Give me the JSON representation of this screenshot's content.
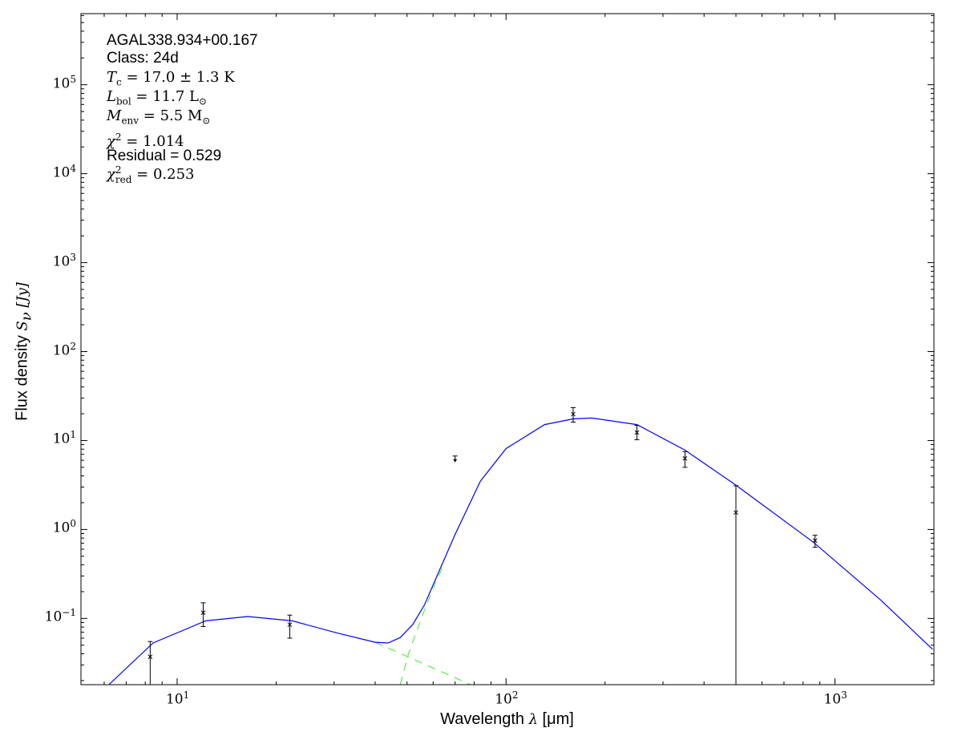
{
  "chart_data": {
    "type": "scatter",
    "xscale": "log",
    "yscale": "log",
    "xlim": [
      5.1,
      2000
    ],
    "ylim": [
      0.018,
      630000
    ],
    "xlabel": {
      "text": "Wavelength ",
      "sym": "λ",
      "unit": " [μm]"
    },
    "ylabel": {
      "text": "Flux density ",
      "sym": "S",
      "sub": "ν",
      "unit": " [Jy]"
    },
    "xticks": [
      {
        "base": "10",
        "exp": "1",
        "value": 10
      },
      {
        "base": "10",
        "exp": "2",
        "value": 100
      },
      {
        "base": "10",
        "exp": "3",
        "value": 1000
      }
    ],
    "yticks": [
      {
        "base": "10",
        "exp": "−1",
        "value": 0.1
      },
      {
        "base": "10",
        "exp": "0",
        "value": 1
      },
      {
        "base": "10",
        "exp": "1",
        "value": 10
      },
      {
        "base": "10",
        "exp": "2",
        "value": 100
      },
      {
        "base": "10",
        "exp": "3",
        "value": 1000
      },
      {
        "base": "10",
        "exp": "4",
        "value": 10000
      },
      {
        "base": "10",
        "exp": "5",
        "value": 100000
      }
    ],
    "grid": false,
    "annotations": {
      "name": "AGAL338.934+00.167",
      "class": "Class: 24d",
      "tc": {
        "var": "T",
        "sub": "c",
        "rest": " = 17.0 ± 1.3 K"
      },
      "lbol": {
        "var": "L",
        "sub": "bol",
        "rest": " = 11.7 L",
        "rest_sub": "⊙"
      },
      "menv": {
        "var": "M",
        "sub": "env",
        "rest": " = 5.5 M",
        "rest_sub": "⊙"
      },
      "chi2": {
        "var": "χ",
        "sup": "2",
        "rest": " = 1.014"
      },
      "residual": "Residual = 0.529",
      "chi2red": {
        "var": "χ",
        "sup": "2",
        "sub": "red",
        "rest": " = 0.253"
      }
    },
    "points": [
      {
        "x": 8.28,
        "y": 0.037,
        "yerr_hi": 0.055,
        "yerr_lo": 0.018
      },
      {
        "x": 12,
        "y": 0.116,
        "yerr_hi": 0.15,
        "yerr_lo": 0.081
      },
      {
        "x": 22,
        "y": 0.085,
        "yerr_hi": 0.109,
        "yerr_lo": 0.06
      },
      {
        "x": 160,
        "y": 19.8,
        "yerr_hi": 23.4,
        "yerr_lo": 16.1
      },
      {
        "x": 250,
        "y": 12.3,
        "yerr_hi": 14.8,
        "yerr_lo": 10.2
      },
      {
        "x": 350,
        "y": 6.3,
        "yerr_hi": 7.5,
        "yerr_lo": 5.0
      },
      {
        "x": 500,
        "y": 1.55,
        "yerr_hi": 3.1,
        "yerr_lo": 0.018
      },
      {
        "x": 870,
        "y": 0.75,
        "yerr_hi": 0.86,
        "yerr_lo": 0.63
      }
    ],
    "upper_limits": [
      {
        "x": 70,
        "y": 5.8,
        "top": 6.7
      }
    ],
    "model_total": {
      "color": "#0000ff",
      "style": "solid",
      "x": [
        6.2,
        8.45,
        12.2,
        16.4,
        22.4,
        30.5,
        40,
        43.8,
        47.7,
        52,
        56.5,
        63,
        70,
        83.6,
        100,
        131,
        160,
        182,
        250,
        350,
        497,
        860,
        1380,
        1980
      ],
      "y": [
        0.018,
        0.053,
        0.094,
        0.105,
        0.094,
        0.069,
        0.054,
        0.053,
        0.061,
        0.085,
        0.142,
        0.36,
        0.88,
        3.5,
        8.1,
        15.1,
        17.5,
        17.9,
        15.1,
        7.8,
        3.2,
        0.72,
        0.16,
        0.045
      ]
    },
    "model_warm": {
      "color": "#55ee44",
      "style": "dashed",
      "x": [
        40,
        53,
        78
      ],
      "y": [
        0.054,
        0.034,
        0.018
      ]
    },
    "model_cold": {
      "color": "#55ee44",
      "style": "dashed",
      "x": [
        47.7,
        50.5,
        56.5,
        61,
        65
      ],
      "y": [
        0.018,
        0.04,
        0.124,
        0.25,
        0.42
      ]
    }
  }
}
